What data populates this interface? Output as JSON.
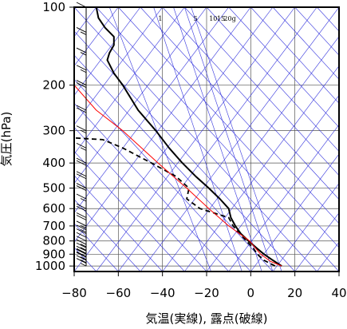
{
  "chart_data": {
    "type": "line",
    "title": "",
    "xlabel": "気温(実線), 露点(破線)",
    "ylabel": "気圧(hPa)",
    "xlim": [
      -80,
      40
    ],
    "ylim": [
      1050,
      100
    ],
    "y_scale": "log",
    "x_ticks": [
      -80,
      -60,
      -40,
      -20,
      0,
      20,
      40
    ],
    "x_tick_labels": [
      "−80",
      "−60",
      "−40",
      "−20",
      "0",
      "20",
      "40"
    ],
    "y_ticks": [
      100,
      200,
      300,
      400,
      500,
      600,
      700,
      800,
      900,
      1000
    ],
    "y_tick_labels": [
      "100",
      "200",
      "300",
      "400",
      "500",
      "600",
      "700",
      "800",
      "900",
      "1000"
    ],
    "mixing_ratio_labels": [
      "1",
      "5",
      "10",
      "15",
      "20g"
    ],
    "grid": true,
    "colors": {
      "frame": "#000000",
      "grid": "#555555",
      "skew_lines": "#3333dd",
      "parcel": "#ff0000",
      "temperature": "#000000",
      "dewpoint": "#000000",
      "wind_barbs": "#000000"
    },
    "series": [
      {
        "style": "solid",
        "points": [
          {
            "p": 1000,
            "t": 14
          },
          {
            "p": 950,
            "t": 10
          },
          {
            "p": 900,
            "t": 6
          },
          {
            "p": 850,
            "t": 2.5
          },
          {
            "p": 800,
            "t": -1
          },
          {
            "p": 750,
            "t": -4.5
          },
          {
            "p": 700,
            "t": -7
          },
          {
            "p": 650,
            "t": -9
          },
          {
            "p": 600,
            "t": -10
          },
          {
            "p": 550,
            "t": -14
          },
          {
            "p": 500,
            "t": -19
          },
          {
            "p": 450,
            "t": -25
          },
          {
            "p": 400,
            "t": -31
          },
          {
            "p": 350,
            "t": -37
          },
          {
            "p": 300,
            "t": -43
          },
          {
            "p": 250,
            "t": -51
          },
          {
            "p": 200,
            "t": -58
          },
          {
            "p": 180,
            "t": -62
          },
          {
            "p": 160,
            "t": -65
          },
          {
            "p": 150,
            "t": -64
          },
          {
            "p": 140,
            "t": -62
          },
          {
            "p": 130,
            "t": -62
          },
          {
            "p": 120,
            "t": -66
          },
          {
            "p": 110,
            "t": -69
          },
          {
            "p": 100,
            "t": -70
          }
        ]
      },
      {
        "style": "dashed",
        "points": [
          {
            "p": 1000,
            "t": 11
          },
          {
            "p": 950,
            "t": 6
          },
          {
            "p": 900,
            "t": 3
          },
          {
            "p": 850,
            "t": 1
          },
          {
            "p": 800,
            "t": -2
          },
          {
            "p": 750,
            "t": -5
          },
          {
            "p": 700,
            "t": -8
          },
          {
            "p": 650,
            "t": -10
          },
          {
            "p": 600,
            "t": -23
          },
          {
            "p": 550,
            "t": -29
          },
          {
            "p": 500,
            "t": -28
          },
          {
            "p": 450,
            "t": -34
          },
          {
            "p": 400,
            "t": -45
          },
          {
            "p": 350,
            "t": -58
          },
          {
            "p": 325,
            "t": -67
          },
          {
            "p": 320,
            "t": -80
          }
        ]
      },
      {
        "style": "parcel",
        "points": [
          {
            "p": 1000,
            "t": 14
          },
          {
            "p": 960,
            "t": 9
          },
          {
            "p": 900,
            "t": 4.5
          },
          {
            "p": 850,
            "t": 2
          },
          {
            "p": 800,
            "t": -0.5
          },
          {
            "p": 700,
            "t": -10
          },
          {
            "p": 600,
            "t": -19
          },
          {
            "p": 500,
            "t": -29
          },
          {
            "p": 400,
            "t": -42
          },
          {
            "p": 300,
            "t": -58
          },
          {
            "p": 250,
            "t": -70
          },
          {
            "p": 200,
            "t": -80
          }
        ]
      }
    ],
    "wind_barbs": [
      {
        "p": 1000,
        "speed": 5
      },
      {
        "p": 975,
        "speed": 10
      },
      {
        "p": 950,
        "speed": 15
      },
      {
        "p": 925,
        "speed": 15
      },
      {
        "p": 900,
        "speed": 20
      },
      {
        "p": 875,
        "speed": 20
      },
      {
        "p": 850,
        "speed": 15
      },
      {
        "p": 825,
        "speed": 15
      },
      {
        "p": 800,
        "speed": 10
      },
      {
        "p": 775,
        "speed": 10
      },
      {
        "p": 750,
        "speed": 10
      },
      {
        "p": 725,
        "speed": 15
      },
      {
        "p": 700,
        "speed": 15
      },
      {
        "p": 650,
        "speed": 20
      },
      {
        "p": 600,
        "speed": 20
      },
      {
        "p": 550,
        "speed": 15
      },
      {
        "p": 500,
        "speed": 20
      },
      {
        "p": 450,
        "speed": 20
      },
      {
        "p": 400,
        "speed": 20
      },
      {
        "p": 350,
        "speed": 15
      },
      {
        "p": 300,
        "speed": 15
      },
      {
        "p": 250,
        "speed": 20
      },
      {
        "p": 200,
        "speed": 20
      },
      {
        "p": 175,
        "speed": 15
      },
      {
        "p": 150,
        "speed": 15
      },
      {
        "p": 125,
        "speed": 15
      },
      {
        "p": 100,
        "speed": 10
      }
    ]
  }
}
